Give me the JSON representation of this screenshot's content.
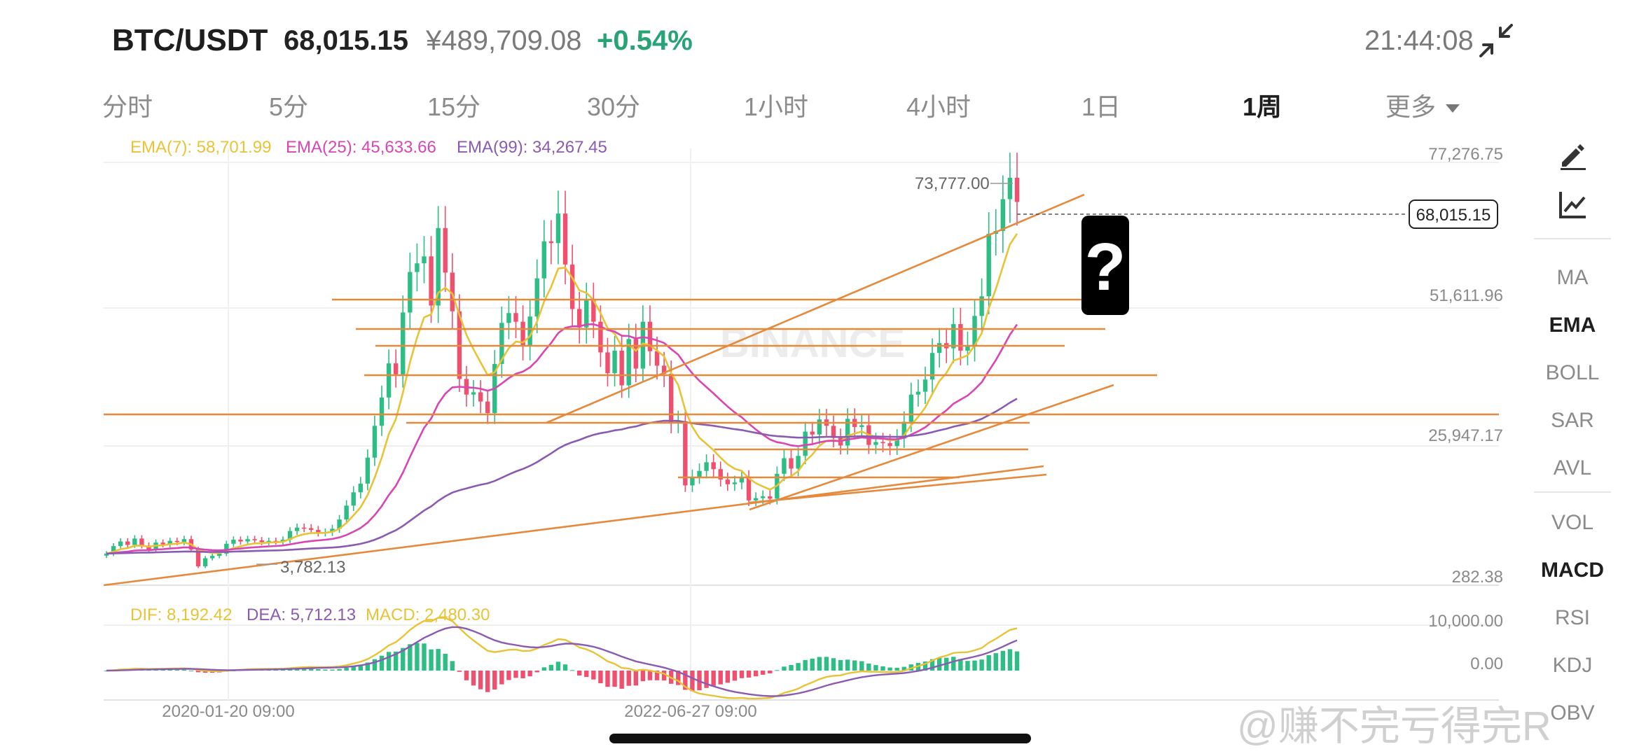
{
  "header": {
    "pair": "BTC/USDT",
    "price": "68,015.15",
    "price_cny": "¥489,709.08",
    "change": "+0.54%",
    "time": "21:44:08"
  },
  "intervals": [
    "分时",
    "5分",
    "15分",
    "30分",
    "1小时",
    "4小时",
    "1日",
    "1周",
    "更多"
  ],
  "active_interval": "1周",
  "indicators": {
    "main": [
      "MA",
      "EMA",
      "BOLL",
      "SAR",
      "AVL"
    ],
    "sub": [
      "VOL",
      "MACD",
      "RSI",
      "KDJ",
      "OBV"
    ],
    "active_main": "EMA",
    "active_sub": "MACD"
  },
  "legend": {
    "ema7": "EMA(7): 58,701.99",
    "ema25": "EMA(25): 45,633.66",
    "ema99": "EMA(99): 34,267.45",
    "dif": "DIF: 8,192.42",
    "dea": "DEA: 5,712.13",
    "macd": "MACD: 2,480.30"
  },
  "price_axis": [
    "77,276.75",
    "51,611.96",
    "25,947.17",
    "282.38"
  ],
  "macd_axis": [
    "10,000.00",
    "0.00"
  ],
  "markers": {
    "high": "73,777.00",
    "low": "3,782.13",
    "current": "68,015.15",
    "question": "?"
  },
  "time_axis": [
    "2020-01-20 09:00",
    "2022-06-27 09:00"
  ],
  "watermark": "BINANCE",
  "weibo_watermark": "@赚不完亏得完R",
  "colors": {
    "up": "#2ebd85",
    "down": "#f0506e",
    "ema7": "#e8c336",
    "ema25": "#d946b4",
    "ema99": "#8a5bb0",
    "trendline": "#e58a3c"
  },
  "chart_data": {
    "type": "candlestick",
    "timeframe": "1周",
    "ylim": [
      282.38,
      77276.75
    ],
    "x_ticks": [
      "2020-01-20 09:00",
      "2022-06-27 09:00"
    ],
    "last_close": 68015.15,
    "period_high": 73777.0,
    "period_low": 3782.13,
    "closes_approx": [
      7200,
      8500,
      9300,
      8700,
      9800,
      8600,
      7900,
      9100,
      8800,
      9400,
      9200,
      9700,
      7900,
      5000,
      6400,
      6800,
      7200,
      8900,
      9600,
      9300,
      9700,
      9500,
      9200,
      9400,
      9300,
      9600,
      11100,
      11700,
      11600,
      11300,
      10800,
      10900,
      11500,
      13100,
      15500,
      17800,
      19300,
      23800,
      29300,
      34200,
      40100,
      38200,
      48900,
      55900,
      57400,
      58600,
      50100,
      63500,
      55800,
      49100,
      37400,
      34700,
      35100,
      33500,
      31500,
      40000,
      47100,
      48800,
      47300,
      43200,
      48200,
      54800,
      61200,
      60900,
      66000,
      57200,
      49500,
      46300,
      51000,
      47300,
      42000,
      38400,
      42300,
      36300,
      44300,
      39200,
      47300,
      42200,
      39700,
      38300,
      29800,
      30100,
      19000,
      20500,
      21500,
      23000,
      21800,
      20000,
      19200,
      19500,
      20400,
      16400,
      16800,
      17100,
      16700,
      21000,
      23700,
      21900,
      24100,
      28300,
      27800,
      30400,
      29300,
      27200,
      25900,
      30500,
      29100,
      29400,
      26000,
      26500,
      26300,
      25800,
      27100,
      30000,
      34700,
      35200,
      37300,
      41900,
      43600,
      42700,
      46900,
      42300,
      43000,
      48300,
      51700,
      62500,
      63000,
      68500,
      72200,
      68015
    ]
  }
}
